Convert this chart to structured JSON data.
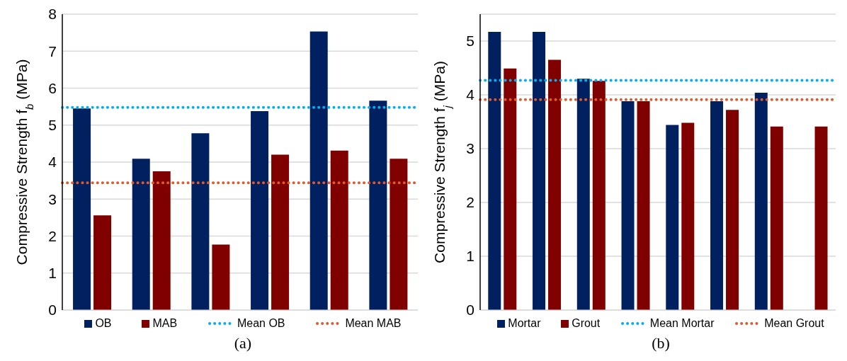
{
  "chart_data": [
    {
      "type": "bar",
      "ylabel": "Compressive Strength f$_{b}$ (MPa)",
      "categories": [
        null,
        null,
        null,
        null,
        null,
        null
      ],
      "series": [
        {
          "name": "OB",
          "color": "#002060",
          "values": [
            5.45,
            4.09,
            4.78,
            5.38,
            7.53,
            5.66
          ]
        },
        {
          "name": "MAB",
          "color": "#800000",
          "values": [
            2.56,
            3.75,
            1.77,
            4.2,
            4.31,
            4.09
          ]
        }
      ],
      "ref_lines": [
        {
          "axis": "y",
          "value": 5.48,
          "label": "Mean OB",
          "color": "#00b0f0",
          "line_style": "dotted"
        },
        {
          "axis": "y",
          "value": 3.44,
          "label": "Mean MAB",
          "color": "#e05a2b",
          "line_style": "dotted"
        }
      ],
      "ylim": [
        0,
        8
      ],
      "yticks": [
        0,
        1,
        2,
        3,
        4,
        5,
        6,
        7,
        8
      ],
      "grid": "y",
      "legend": "bottom",
      "annotations": [
        "(a)"
      ]
    },
    {
      "type": "bar",
      "ylabel": "Compressive Strength f$_{j}$ (MPa)",
      "categories": [
        null,
        null,
        null,
        null,
        null,
        null,
        null,
        null
      ],
      "series": [
        {
          "name": "Mortar",
          "color": "#002060",
          "values": [
            5.17,
            5.17,
            4.3,
            3.88,
            3.44,
            3.88,
            4.04,
            null
          ]
        },
        {
          "name": "Grout",
          "color": "#800000",
          "values": [
            4.49,
            4.65,
            4.26,
            3.88,
            3.48,
            3.72,
            3.41,
            3.41
          ]
        }
      ],
      "ref_lines": [
        {
          "axis": "y",
          "value": 4.27,
          "label": "Mean Mortar",
          "color": "#00b0f0",
          "line_style": "dotted"
        },
        {
          "axis": "y",
          "value": 3.91,
          "label": "Mean Grout",
          "color": "#e05a2b",
          "line_style": "dotted"
        }
      ],
      "ylim": [
        0,
        5.5
      ],
      "yticks": [
        0,
        1,
        2,
        3,
        4,
        5
      ],
      "grid": "y",
      "legend": "bottom",
      "annotations": [
        "(b)"
      ]
    }
  ]
}
